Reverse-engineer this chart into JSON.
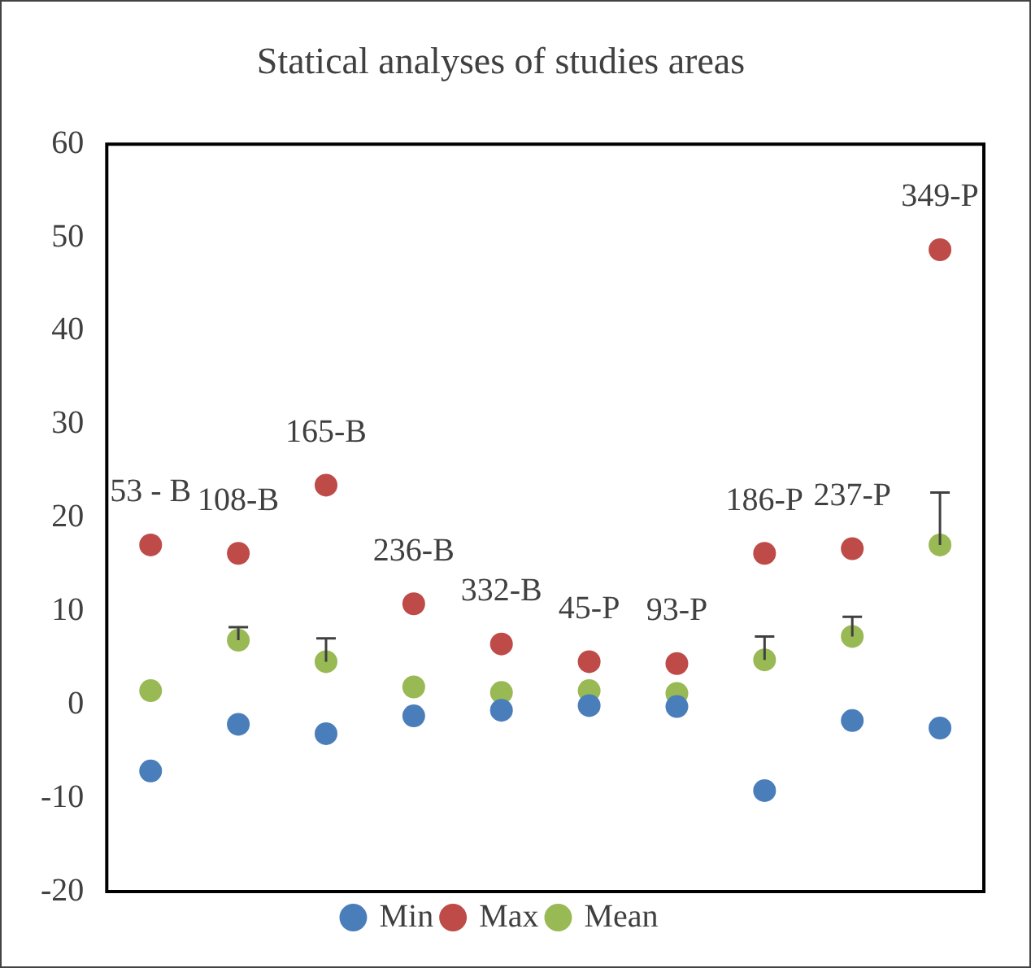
{
  "chart_data": {
    "type": "scatter",
    "title": "Statical analyses of studies areas",
    "categories": [
      "53 - B",
      "108-B",
      "165-B",
      "236-B",
      "332-B",
      "45-P",
      "93-P",
      "186-P",
      "237-P",
      "349-P"
    ],
    "series": [
      {
        "name": "Min",
        "color": "#4a7ebb",
        "values": [
          -7.1,
          -2.1,
          -3.1,
          -1.2,
          -0.6,
          -0.1,
          -0.2,
          -9.2,
          -1.7,
          -2.5
        ]
      },
      {
        "name": "Max",
        "color": "#be4b48",
        "values": [
          17.1,
          16.2,
          23.5,
          10.8,
          6.5,
          4.6,
          4.4,
          16.2,
          16.7,
          48.7
        ]
      },
      {
        "name": "Mean",
        "color": "#98b954",
        "values": [
          1.5,
          6.9,
          4.6,
          1.9,
          1.3,
          1.5,
          1.2,
          4.8,
          7.3,
          17.1
        ],
        "errors": [
          null,
          [
            6.9,
            8.3
          ],
          [
            4.6,
            7.1
          ],
          null,
          null,
          null,
          null,
          [
            4.8,
            7.3
          ],
          [
            7.3,
            9.4
          ],
          [
            17.1,
            22.7
          ]
        ]
      }
    ],
    "ylim": [
      -20,
      60
    ],
    "yticks": [
      -20,
      -10,
      0,
      10,
      20,
      30,
      40,
      50,
      60
    ],
    "grid": false,
    "legend": "bottom",
    "marker": "circle"
  }
}
